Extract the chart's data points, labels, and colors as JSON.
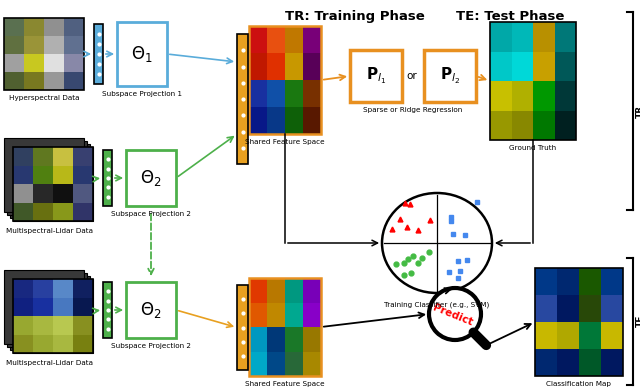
{
  "title_tr": "TR: Training Phase",
  "title_te": "TE: Test Phase",
  "labels": {
    "hyper": "Hyperspectral Data",
    "multi1": "Multispectral-Lidar Data",
    "multi2": "Multispectral-Lidar Data",
    "subspace1": "Subspace Projection 1",
    "subspace2_tr": "Subspace Projection 2",
    "subspace2_te": "Subspace Projection 2",
    "shared_tr": "Shared Feature Space",
    "shared_te": "Shared Feature Space",
    "regression": "Sparse or Ridge Regression",
    "ground_truth": "Ground Truth",
    "classifier": "Training Classifier (e.g., SVM)",
    "predict": "Predict",
    "classmap": "Classification Map"
  },
  "colors": {
    "blue_box": "#5aacda",
    "green_box": "#4db04a",
    "orange_vec": "#e8a020",
    "orange_border": "#e89020",
    "black": "#000000",
    "white": "#ffffff",
    "red": "#cc0000",
    "bg": "#ffffff"
  },
  "hyper_colors": [
    "#5a7050",
    "#8a8830",
    "#909090",
    "#506080",
    "#607040",
    "#9a9438",
    "#b0b0b0",
    "#607090",
    "#a0a0a0",
    "#c8c820",
    "#e0e0e0",
    "#8888a8",
    "#506030",
    "#787820",
    "#989898",
    "#384870"
  ],
  "ms_colors": [
    "#304060",
    "#607820",
    "#c8c040",
    "#384070",
    "#283870",
    "#508010",
    "#b8b818",
    "#283870",
    "#909090",
    "#282828",
    "#101010",
    "#505880",
    "#405828",
    "#687010",
    "#88981a",
    "#303468"
  ],
  "sfs_tr_colors": [
    "#cc1010",
    "#e85010",
    "#c07800",
    "#780078",
    "#c01800",
    "#e03000",
    "#c89800",
    "#580058",
    "#1830a0",
    "#1050a8",
    "#1a7810",
    "#783000",
    "#081888",
    "#083888",
    "#0e6008",
    "#581800"
  ],
  "gt_colors": [
    "#00a8a8",
    "#00b8b8",
    "#b89000",
    "#007878",
    "#00c8c8",
    "#00d8d8",
    "#c8a000",
    "#005858",
    "#c8c000",
    "#b0b000",
    "#009800",
    "#003838",
    "#989800",
    "#888800",
    "#007800",
    "#002020"
  ],
  "te_ms_colors": [
    "#182880",
    "#2840a0",
    "#5888c8",
    "#102060",
    "#102080",
    "#1830a0",
    "#4878c0",
    "#081850",
    "#98a830",
    "#a8b840",
    "#b8c850",
    "#889020",
    "#889020",
    "#98a830",
    "#a8b840",
    "#788010"
  ],
  "sfs_te_colors": [
    "#e03800",
    "#b87800",
    "#009880",
    "#7800b8",
    "#e05800",
    "#c08800",
    "#00a890",
    "#8800c8",
    "#0098c0",
    "#003878",
    "#1a7828",
    "#987800",
    "#00a8c8",
    "#004888",
    "#286838",
    "#a88800"
  ],
  "cm_colors": [
    "#003888",
    "#002870",
    "#1a5800",
    "#003888",
    "#2848a0",
    "#001860",
    "#284808",
    "#2848a0",
    "#c8b800",
    "#b0a800",
    "#007838",
    "#c8b800",
    "#002870",
    "#001860",
    "#005828",
    "#001860"
  ]
}
